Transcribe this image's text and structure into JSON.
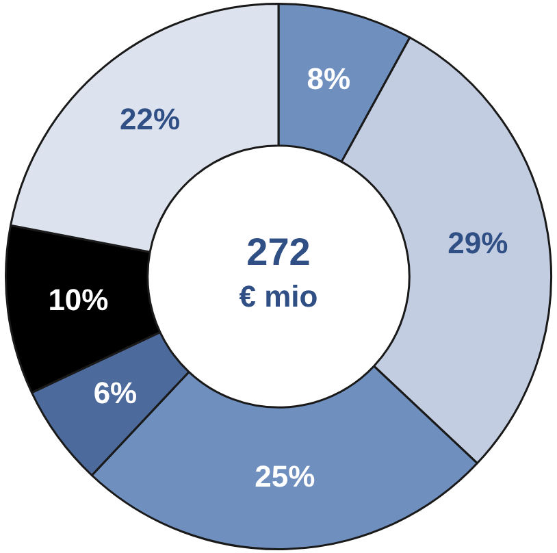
{
  "chart_data": {
    "type": "donut",
    "categories": [
      null,
      null,
      null,
      null,
      null,
      null
    ],
    "values": [
      8,
      29,
      25,
      6,
      10,
      22
    ],
    "value_labels": [
      "8%",
      "29%",
      "25%",
      "6%",
      "10%",
      "22%"
    ],
    "colors": [
      "#6f8fbf",
      "#c3cde1",
      "#6f8fbf",
      "#4d6a9c",
      "#000000",
      "#dde3ee"
    ],
    "annotations": [
      "272",
      "€ mio"
    ],
    "legend": false
  }
}
